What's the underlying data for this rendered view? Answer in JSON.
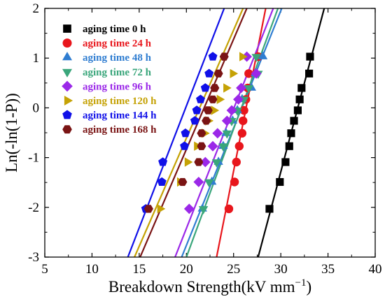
{
  "chart_data": {
    "type": "scatter",
    "xlabel": "Breakdown Strength(kV mm",
    "xlabel_sup": "−1",
    "xlabel_end": ")",
    "ylabel": "Ln(-ln(1-P))",
    "xlim": [
      5,
      40
    ],
    "ylim": [
      -3,
      2
    ],
    "xticks": [
      "5",
      "10",
      "15",
      "20",
      "25",
      "30",
      "35",
      "40"
    ],
    "yticks": [
      "-3",
      "-2",
      "-1",
      "0",
      "1",
      "2"
    ],
    "legend_position": "top-left",
    "series": [
      {
        "name": "aging time 0 h",
        "color": "#000000",
        "marker": "square",
        "x": [
          28.8,
          29.9,
          30.5,
          30.9,
          31.1,
          31.4,
          31.8,
          32.0,
          32.2,
          33.0,
          33.1
        ],
        "y": [
          -2.03,
          -1.49,
          -1.09,
          -0.77,
          -0.51,
          -0.26,
          -0.05,
          0.17,
          0.4,
          0.69,
          1.03
        ],
        "fit": [
          [
            27.6,
            -3.0
          ],
          [
            34.6,
            2.0
          ]
        ]
      },
      {
        "name": "aging time 24 h",
        "color": "#e8161c",
        "marker": "circle",
        "x": [
          24.5,
          25.1,
          25.3,
          25.6,
          25.9,
          26.0,
          26.1,
          26.3,
          26.5,
          26.6,
          27.6
        ],
        "y": [
          -2.03,
          -1.49,
          -1.09,
          -0.77,
          -0.51,
          -0.26,
          -0.05,
          0.17,
          0.4,
          0.69,
          1.03
        ],
        "fit": [
          [
            23.2,
            -3.0
          ],
          [
            28.4,
            2.0
          ]
        ]
      },
      {
        "name": "aging time 48 h",
        "color": "#2f7dd1",
        "marker": "triangle-up",
        "x": [
          21.7,
          22.7,
          23.4,
          23.9,
          24.2,
          24.9,
          25.4,
          25.9,
          26.9,
          27.3,
          28.1
        ],
        "y": [
          -2.03,
          -1.49,
          -1.09,
          -0.77,
          -0.51,
          -0.26,
          -0.05,
          0.17,
          0.4,
          0.69,
          1.03
        ],
        "fit": [
          [
            19.5,
            -3.0
          ],
          [
            30.1,
            2.0
          ]
        ]
      },
      {
        "name": "aging time 72 h",
        "color": "#3aa67b",
        "marker": "triangle-down",
        "x": [
          21.8,
          22.4,
          23.2,
          23.9,
          24.3,
          24.8,
          25.4,
          26.1,
          26.6,
          27.6,
          27.4
        ],
        "y": [
          -2.03,
          -1.49,
          -1.09,
          -0.77,
          -0.51,
          -0.26,
          -0.05,
          0.17,
          0.4,
          0.69,
          1.03
        ],
        "fit": [
          [
            20.0,
            -3.0
          ],
          [
            29.7,
            2.0
          ]
        ]
      },
      {
        "name": "aging time 96 h",
        "color": "#9b28e8",
        "marker": "diamond",
        "x": [
          20.3,
          21.3,
          22.0,
          22.8,
          23.3,
          24.3,
          24.8,
          25.5,
          25.8,
          27.4,
          26.4
        ],
        "y": [
          -2.03,
          -1.49,
          -1.09,
          -0.77,
          -0.51,
          -0.26,
          -0.05,
          0.17,
          0.4,
          0.69,
          1.03
        ],
        "fit": [
          [
            18.8,
            -3.0
          ],
          [
            29.2,
            2.0
          ]
        ]
      },
      {
        "name": "aging time 120 h",
        "color": "#c5a205",
        "marker": "triangle-right",
        "x": [
          17.2,
          19.3,
          20.1,
          21.1,
          21.9,
          22.3,
          22.9,
          23.5,
          24.2,
          24.9,
          25.9
        ],
        "y": [
          -2.03,
          -1.49,
          -1.09,
          -0.77,
          -0.51,
          -0.26,
          -0.05,
          0.17,
          0.4,
          0.69,
          1.03
        ],
        "fit": [
          [
            14.5,
            -3.0
          ],
          [
            26.0,
            2.0
          ]
        ]
      },
      {
        "name": "aging time 144 h",
        "color": "#1010e8",
        "marker": "pentagon",
        "x": [
          15.7,
          17.4,
          17.5,
          19.8,
          19.9,
          20.9,
          21.1,
          21.5,
          22.0,
          22.4,
          22.8
        ],
        "y": [
          -2.03,
          -1.49,
          -1.09,
          -0.77,
          -0.51,
          -0.26,
          -0.05,
          0.17,
          0.4,
          0.69,
          1.03
        ],
        "fit": [
          [
            13.8,
            -3.0
          ],
          [
            24.0,
            2.0
          ]
        ]
      },
      {
        "name": "aging time 168 h",
        "color": "#7a1414",
        "marker": "hexagon",
        "x": [
          16.0,
          19.6,
          21.3,
          21.6,
          21.6,
          22.1,
          22.3,
          22.8,
          23.0,
          23.4,
          24.0
        ],
        "y": [
          -2.03,
          -1.49,
          -1.09,
          -0.77,
          -0.51,
          -0.26,
          -0.05,
          0.17,
          0.4,
          0.69,
          1.03
        ],
        "fit": [
          [
            15.1,
            -3.0
          ],
          [
            26.4,
            2.0
          ]
        ]
      }
    ]
  }
}
